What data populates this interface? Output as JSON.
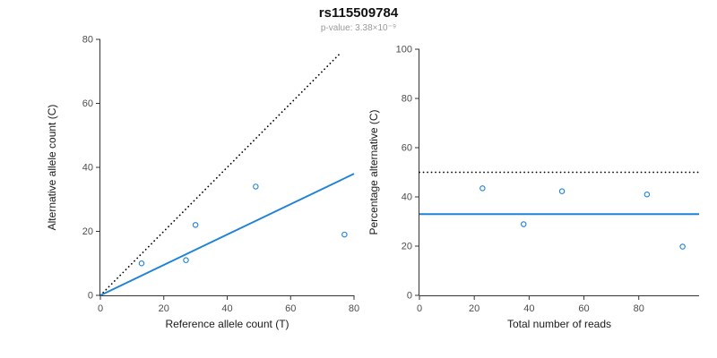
{
  "header": {
    "title": "rs115509784",
    "subtitle": "p-value: 3.38×10⁻⁹"
  },
  "colors": {
    "accent_blue": "#1e82d6",
    "reference_black": "#000000",
    "axis": "#333333",
    "tick_label": "#4d4d4d",
    "axis_title": "#1a1a1a",
    "subtitle_gray": "#9a9a9a"
  },
  "chart_data": [
    {
      "type": "scatter",
      "name": "allele-counts",
      "title": "rs115509784",
      "xlabel": "Reference allele count (T)",
      "ylabel": "Alternative allele count (C)",
      "xlim": [
        0,
        80
      ],
      "ylim": [
        0,
        80
      ],
      "xticks": [
        0,
        20,
        40,
        60,
        80
      ],
      "yticks": [
        0,
        20,
        40,
        60,
        80
      ],
      "grid": false,
      "legend": "none",
      "points": [
        [
          13,
          10
        ],
        [
          27,
          11
        ],
        [
          30,
          22
        ],
        [
          49,
          34
        ],
        [
          77,
          19
        ]
      ],
      "lines": [
        {
          "name": "identity-line",
          "style": "dotted",
          "color": "#000000",
          "x1": 0,
          "y1": 0,
          "x2": 76,
          "y2": 76
        },
        {
          "name": "fit-line",
          "style": "solid",
          "color": "#1e82d6",
          "x1": 0,
          "y1": 0,
          "x2": 80,
          "y2": 38
        }
      ]
    },
    {
      "type": "scatter",
      "name": "percentage-alternative",
      "xlabel": "Total number of reads",
      "ylabel": "Percentage alternative (C)",
      "xlim": [
        0,
        102
      ],
      "ylim": [
        0,
        100
      ],
      "xticks": [
        0,
        20,
        40,
        60,
        80
      ],
      "yticks": [
        0,
        20,
        40,
        60,
        80,
        100
      ],
      "grid": false,
      "legend": "none",
      "points": [
        [
          23,
          43.5
        ],
        [
          38,
          28.9
        ],
        [
          52,
          42.3
        ],
        [
          83,
          41
        ],
        [
          96,
          19.8
        ]
      ],
      "lines": [
        {
          "name": "expected-percentage-line",
          "style": "dotted",
          "color": "#000000",
          "x1": 0,
          "y1": 50,
          "x2": 102,
          "y2": 50
        },
        {
          "name": "mean-percentage-line",
          "style": "solid",
          "color": "#1e82d6",
          "x1": 0,
          "y1": 33,
          "x2": 102,
          "y2": 33
        }
      ]
    }
  ]
}
